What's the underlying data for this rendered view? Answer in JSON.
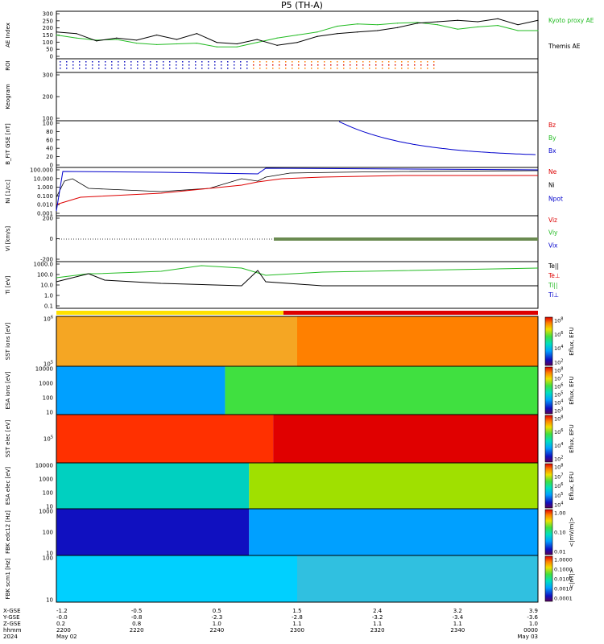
{
  "title": "P5 (TH-A)",
  "colors": {
    "ae_kyoto": "#22bb22",
    "ae_themis": "#000000",
    "red": "#dd0000",
    "green": "#22bb22",
    "blue": "#0000cc",
    "black": "#000000"
  },
  "chart_data": [
    {
      "id": "ae",
      "type": "line",
      "ylabel": "AE Index",
      "ylim": [
        0,
        300
      ],
      "yticks": [
        "300",
        "250",
        "200",
        "150",
        "100",
        "50",
        "0"
      ],
      "x": [
        "2200",
        "2205",
        "2210",
        "2215",
        "2220",
        "2225",
        "2230",
        "2235",
        "2240",
        "2245",
        "2250",
        "2255",
        "2300",
        "2305",
        "2310",
        "2315",
        "2320",
        "2325",
        "2330",
        "2335",
        "2340",
        "2345",
        "2350",
        "2355",
        "0000"
      ],
      "series": [
        {
          "name": "Kyoto proxy AE",
          "color_key": "ae_kyoto",
          "values": [
            150,
            130,
            115,
            120,
            95,
            85,
            90,
            95,
            70,
            70,
            100,
            130,
            150,
            170,
            210,
            225,
            220,
            230,
            235,
            220,
            190,
            205,
            215,
            180,
            180
          ]
        },
        {
          "name": "Themis AE",
          "color_key": "ae_themis",
          "values": [
            170,
            160,
            110,
            130,
            115,
            150,
            120,
            160,
            100,
            90,
            120,
            80,
            100,
            140,
            160,
            170,
            180,
            200,
            230,
            240,
            250,
            240,
            260,
            220,
            250
          ]
        }
      ]
    },
    {
      "id": "roi",
      "type": "line",
      "ylabel": "ROI",
      "yticks": []
    },
    {
      "id": "keogram",
      "type": "heatmap",
      "ylabel": "Keogram",
      "yticks": [
        "300",
        "200",
        "100"
      ]
    },
    {
      "id": "bfit",
      "type": "line",
      "ylabel": "B_FIT GSE [nT]",
      "ylim": [
        0,
        100
      ],
      "yticks": [
        "100",
        "80",
        "60",
        "40",
        "20",
        "0"
      ],
      "series": [
        {
          "name": "Bz",
          "color_key": "red"
        },
        {
          "name": "By",
          "color_key": "green"
        },
        {
          "name": "Bx",
          "color_key": "blue"
        }
      ]
    },
    {
      "id": "ni",
      "type": "line",
      "ylabel": "Ni [1/cc]",
      "yscale": "log",
      "yticks": [
        "100.000",
        "10.000",
        "1.000",
        "0.100",
        "0.010",
        "0.001"
      ],
      "series": [
        {
          "name": "Ne",
          "color_key": "red"
        },
        {
          "name": "Ni",
          "color_key": "black"
        },
        {
          "name": "Npot",
          "color_key": "blue"
        }
      ]
    },
    {
      "id": "vi",
      "type": "line",
      "ylabel": "Vi [km/s]",
      "yticks": [
        "200",
        "0",
        "-200"
      ],
      "series": [
        {
          "name": "Viz",
          "color_key": "red"
        },
        {
          "name": "Viy",
          "color_key": "green"
        },
        {
          "name": "Vix",
          "color_key": "blue"
        }
      ]
    },
    {
      "id": "ti",
      "type": "line",
      "ylabel": "Ti [eV]",
      "yscale": "log",
      "yticks": [
        "1000.0",
        "100.0",
        "10.0",
        "1.0",
        "0.1"
      ],
      "series": [
        {
          "name": "Te||",
          "color_key": "black"
        },
        {
          "name": "Te⊥",
          "color_key": "red"
        },
        {
          "name": "Ti||",
          "color_key": "green"
        },
        {
          "name": "Ti⊥",
          "color_key": "blue"
        }
      ]
    },
    {
      "id": "sst_ion",
      "type": "heatmap",
      "ylabel": "SST ions [eV]",
      "yticks": [
        "10^6",
        "10^5"
      ],
      "colorbar": {
        "label": "Eflux, EFU",
        "ticks": [
          "10^8",
          "10^6",
          "10^4",
          "10^2"
        ]
      }
    },
    {
      "id": "esa_ion",
      "type": "heatmap",
      "ylabel": "ESA ions [eV]",
      "yticks": [
        "10000",
        "1000",
        "100",
        "10"
      ],
      "colorbar": {
        "label": "Eflux, EFU",
        "ticks": [
          "10^8",
          "10^7",
          "10^6",
          "10^5",
          "10^4",
          "10^3"
        ]
      }
    },
    {
      "id": "sst_elec",
      "type": "heatmap",
      "ylabel": "SST elec [eV]",
      "yticks": [
        "10^5"
      ],
      "colorbar": {
        "label": "Eflux, EFU",
        "ticks": [
          "10^8",
          "10^6",
          "10^4",
          "10^2"
        ]
      }
    },
    {
      "id": "esa_elec",
      "type": "heatmap",
      "ylabel": "ESA elec [eV]",
      "yticks": [
        "10000",
        "1000",
        "100",
        "10"
      ],
      "colorbar": {
        "label": "Eflux, EFU",
        "ticks": [
          "10^8",
          "10^7",
          "10^6",
          "10^5",
          "10^4"
        ]
      }
    },
    {
      "id": "fbk_e",
      "type": "heatmap",
      "ylabel": "FBK edc12 [Hz]",
      "yticks": [
        "1000",
        "100",
        "10"
      ],
      "colorbar": {
        "label": "<|mV/m|>",
        "ticks": [
          "1.00",
          "0.10",
          "0.01"
        ]
      }
    },
    {
      "id": "fbk_b",
      "type": "heatmap",
      "ylabel": "FBK scm1 [Hz]",
      "yticks": [
        "100",
        "10"
      ],
      "colorbar": {
        "label": "<|nT|>",
        "ticks": [
          "1.0000",
          "0.1000",
          "0.0100",
          "0.0010",
          "0.0001"
        ]
      }
    }
  ],
  "xaxis": {
    "row_labels": [
      "X-GSE",
      "Y-GSE",
      "Z-GSE",
      "hhmm",
      "2024"
    ],
    "columns": [
      {
        "v": [
          "-1.2",
          "-0.0",
          "0.2",
          "2200",
          "May 02"
        ]
      },
      {
        "v": [
          "-0.5",
          "-0.8",
          "0.8",
          "2220",
          ""
        ]
      },
      {
        "v": [
          "0.5",
          "-2.3",
          "1.0",
          "2240",
          ""
        ]
      },
      {
        "v": [
          "1.5",
          "-2.8",
          "1.1",
          "2300",
          ""
        ]
      },
      {
        "v": [
          "2.4",
          "-3.2",
          "1.1",
          "2320",
          ""
        ]
      },
      {
        "v": [
          "3.2",
          "-3.4",
          "1.1",
          "2340",
          ""
        ]
      },
      {
        "v": [
          "3.9",
          "-3.6",
          "1.0",
          "0000",
          "May 03"
        ]
      }
    ]
  }
}
